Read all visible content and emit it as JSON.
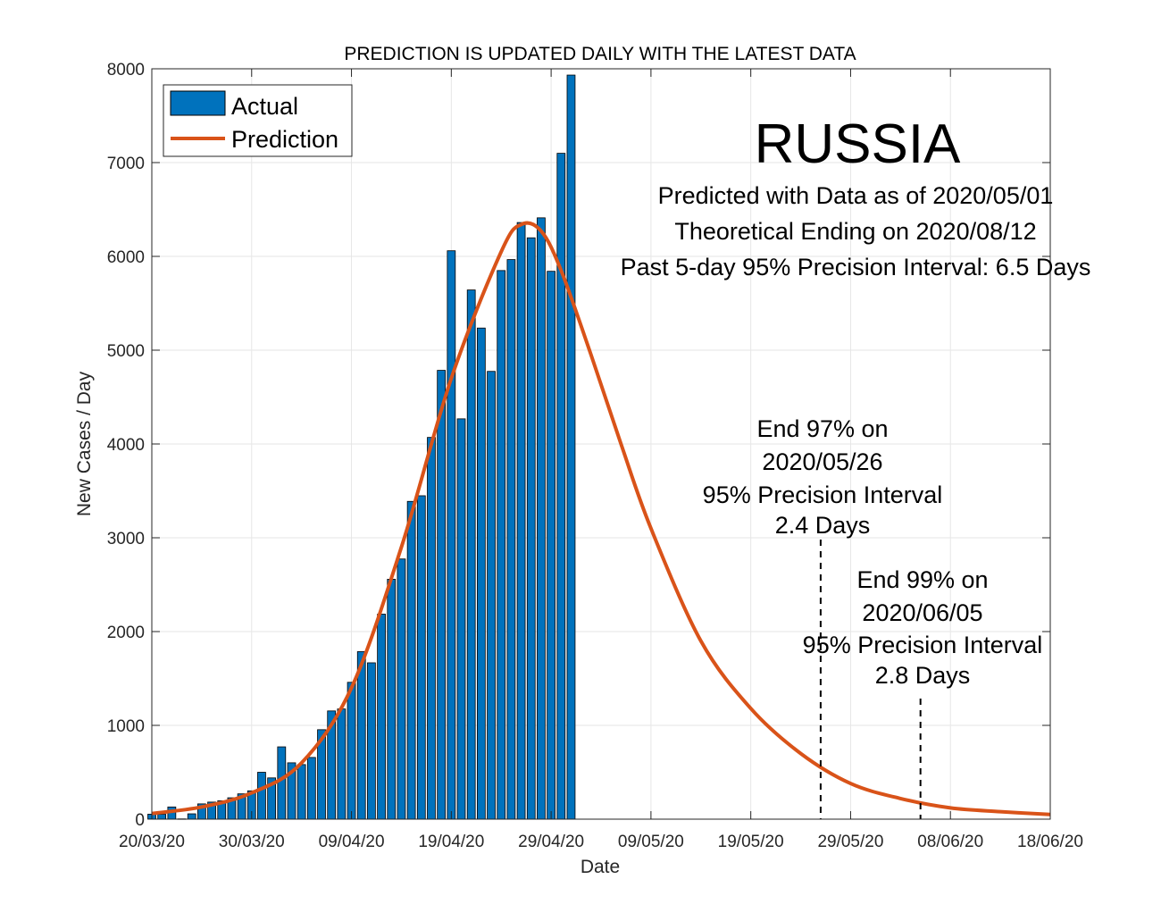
{
  "chart_data": {
    "type": "bar",
    "title": "PREDICTION IS UPDATED DAILY WITH THE LATEST DATA",
    "xlabel": "Date",
    "ylabel": "New Cases / Day",
    "x_tick_labels": [
      "20/03/20",
      "30/03/20",
      "09/04/20",
      "19/04/20",
      "29/04/20",
      "09/05/20",
      "19/05/20",
      "29/05/20",
      "08/06/20",
      "18/06/20"
    ],
    "y_tick_labels": [
      "0",
      "1000",
      "2000",
      "3000",
      "4000",
      "5000",
      "6000",
      "7000",
      "8000"
    ],
    "ylim": [
      0,
      8000
    ],
    "x_start_date": "2020-03-20",
    "x_end_date": "2020-06-18",
    "grid": true,
    "legend_position": "top-left",
    "series": [
      {
        "name": "Actual",
        "kind": "bar",
        "color": "#0072BD",
        "x": [
          "2020-03-20",
          "2020-03-21",
          "2020-03-22",
          "2020-03-23",
          "2020-03-24",
          "2020-03-25",
          "2020-03-26",
          "2020-03-27",
          "2020-03-28",
          "2020-03-29",
          "2020-03-30",
          "2020-03-31",
          "2020-04-01",
          "2020-04-02",
          "2020-04-03",
          "2020-04-04",
          "2020-04-05",
          "2020-04-06",
          "2020-04-07",
          "2020-04-08",
          "2020-04-09",
          "2020-04-10",
          "2020-04-11",
          "2020-04-12",
          "2020-04-13",
          "2020-04-14",
          "2020-04-15",
          "2020-04-16",
          "2020-04-17",
          "2020-04-18",
          "2020-04-19",
          "2020-04-20",
          "2020-04-21",
          "2020-04-22",
          "2020-04-23",
          "2020-04-24",
          "2020-04-25",
          "2020-04-26",
          "2020-04-27",
          "2020-04-28",
          "2020-04-29",
          "2020-04-30",
          "2020-05-01"
        ],
        "values": [
          53,
          52,
          130,
          3,
          57,
          163,
          182,
          196,
          228,
          270,
          302,
          500,
          440,
          771,
          601,
          582,
          658,
          954,
          1154,
          1175,
          1459,
          1786,
          1667,
          2186,
          2558,
          2774,
          3388,
          3448,
          4070,
          4785,
          6060,
          4268,
          5642,
          5236,
          4774,
          5849,
          5966,
          6361,
          6198,
          6411,
          5841,
          7099,
          7933
        ]
      },
      {
        "name": "Prediction",
        "kind": "line",
        "color": "#D95319",
        "x": [
          "2020-03-20",
          "2020-03-25",
          "2020-03-30",
          "2020-04-04",
          "2020-04-09",
          "2020-04-14",
          "2020-04-19",
          "2020-04-24",
          "2020-04-26",
          "2020-04-28",
          "2020-04-30",
          "2020-05-03",
          "2020-05-06",
          "2020-05-09",
          "2020-05-14",
          "2020-05-19",
          "2020-05-24",
          "2020-05-29",
          "2020-06-03",
          "2020-06-08",
          "2020-06-13",
          "2020-06-18"
        ],
        "values": [
          60,
          130,
          280,
          600,
          1400,
          2900,
          4700,
          6050,
          6340,
          6270,
          5850,
          4950,
          4000,
          3100,
          1900,
          1180,
          700,
          380,
          220,
          120,
          80,
          50
        ]
      }
    ],
    "annotations": {
      "country": "RUSSIA",
      "info_lines": [
        "Predicted with Data as of 2020/05/01",
        "Theoretical Ending on 2020/08/12",
        "Past 5-day 95% Precision Interval: 6.5 Days"
      ],
      "end97_lines": [
        "End 97% on",
        "2020/05/26",
        "95% Precision Interval",
        "2.4 Days"
      ],
      "end99_lines": [
        "End 99% on",
        "2020/06/05",
        "95% Precision Interval",
        "2.8 Days"
      ],
      "end97_date": "2020-05-26",
      "end99_date": "2020-06-05"
    }
  }
}
